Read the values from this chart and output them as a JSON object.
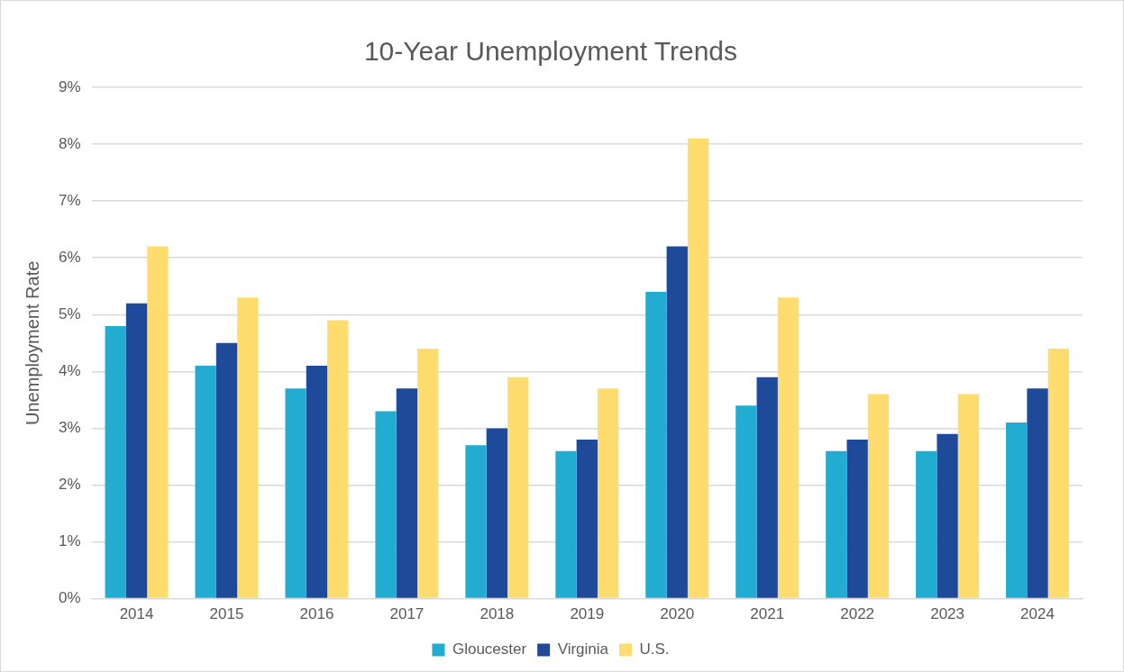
{
  "chart_data": {
    "type": "bar",
    "title": "10-Year Unemployment Trends",
    "ylabel": "Unemployment Rate",
    "categories": [
      "2014",
      "2015",
      "2016",
      "2017",
      "2018",
      "2019",
      "2020",
      "2021",
      "2022",
      "2023",
      "2024"
    ],
    "series": [
      {
        "name": "Gloucester",
        "color": "#22acd1",
        "values": [
          4.8,
          4.1,
          3.7,
          3.3,
          2.7,
          2.6,
          5.4,
          3.4,
          2.6,
          2.6,
          3.1
        ]
      },
      {
        "name": "Virginia",
        "color": "#1f4a9a",
        "values": [
          5.2,
          4.5,
          4.1,
          3.7,
          3.0,
          2.8,
          6.2,
          3.9,
          2.8,
          2.9,
          3.7
        ]
      },
      {
        "name": "U.S.",
        "color": "#fedc6d",
        "values": [
          6.2,
          5.3,
          4.9,
          4.4,
          3.9,
          3.7,
          8.1,
          5.3,
          3.6,
          3.6,
          4.4
        ]
      }
    ],
    "ylim": [
      0,
      9
    ],
    "yticks": [
      {
        "value": 0,
        "label": "0%"
      },
      {
        "value": 1,
        "label": "1%"
      },
      {
        "value": 2,
        "label": "2%"
      },
      {
        "value": 3,
        "label": "3%"
      },
      {
        "value": 4,
        "label": "4%"
      },
      {
        "value": 5,
        "label": "5%"
      },
      {
        "value": 6,
        "label": "6%"
      },
      {
        "value": 7,
        "label": "7%"
      },
      {
        "value": 8,
        "label": "8%"
      },
      {
        "value": 9,
        "label": "9%"
      }
    ],
    "grid": "y",
    "legend": "bottom"
  }
}
